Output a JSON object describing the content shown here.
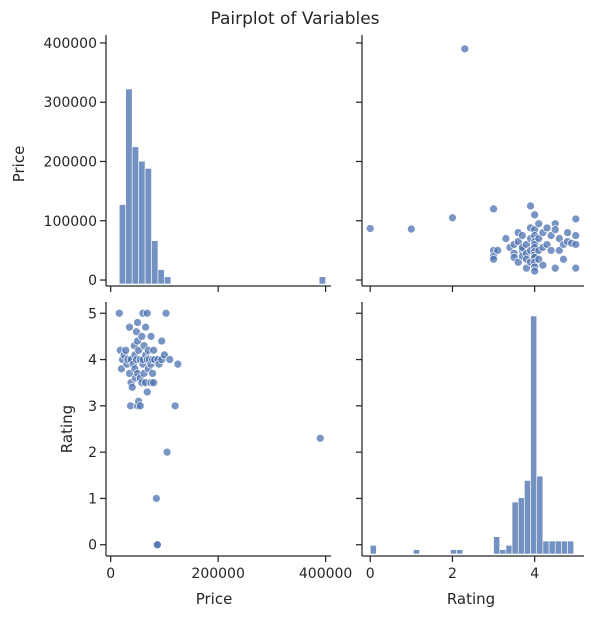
{
  "title": "Pairplot of Variables",
  "variables": [
    "Price",
    "Rating"
  ],
  "colors": {
    "marker": "#4c72b0",
    "axis": "#262626",
    "background": "#ffffff"
  },
  "chart_data": [
    {
      "type": "bar",
      "panel": "Price vs Price (histogram)",
      "xlabel": "",
      "ylabel": "Price",
      "xlim": [
        -5000,
        410000
      ],
      "bin_edges": [
        16000,
        28000,
        40000,
        52000,
        64000,
        76000,
        88000,
        100000,
        112000,
        124000,
        136000,
        148000,
        160000,
        172000,
        184000,
        196000,
        208000,
        220000,
        232000,
        244000,
        256000,
        268000,
        280000,
        292000,
        304000,
        316000,
        328000,
        340000,
        352000,
        364000,
        376000,
        388000,
        400000
      ],
      "counts": [
        11,
        27,
        19,
        17,
        16,
        6,
        2,
        1,
        0,
        0,
        0,
        0,
        0,
        0,
        0,
        0,
        0,
        0,
        0,
        0,
        0,
        0,
        0,
        0,
        0,
        0,
        0,
        0,
        0,
        0,
        0,
        1
      ],
      "yticks": [
        0,
        100000,
        200000,
        300000,
        400000
      ],
      "ytick_labels": [
        "0",
        "100000",
        "200000",
        "300000",
        "400000"
      ]
    },
    {
      "type": "scatter",
      "panel": "Rating vs Price",
      "xlabel": "",
      "ylabel": "",
      "xlim": [
        -0.2,
        5.2
      ],
      "ylim": [
        -5000,
        410000
      ],
      "points": [
        [
          0.0,
          87000
        ],
        [
          1.0,
          86000
        ],
        [
          2.0,
          105000
        ],
        [
          2.3,
          390000
        ],
        [
          3.0,
          120000
        ],
        [
          3.0,
          50000
        ],
        [
          3.0,
          40000
        ],
        [
          3.0,
          35000
        ],
        [
          3.1,
          50000
        ],
        [
          3.3,
          70000
        ],
        [
          3.4,
          55000
        ],
        [
          3.5,
          45000
        ],
        [
          3.5,
          60000
        ],
        [
          3.5,
          38000
        ],
        [
          3.6,
          80000
        ],
        [
          3.6,
          65000
        ],
        [
          3.6,
          30000
        ],
        [
          3.7,
          50000
        ],
        [
          3.7,
          40000
        ],
        [
          3.7,
          75000
        ],
        [
          3.7,
          55000
        ],
        [
          3.8,
          60000
        ],
        [
          3.8,
          45000
        ],
        [
          3.8,
          35000
        ],
        [
          3.8,
          20000
        ],
        [
          3.9,
          88000
        ],
        [
          3.9,
          70000
        ],
        [
          3.9,
          50000
        ],
        [
          3.9,
          125000
        ],
        [
          3.9,
          30000
        ],
        [
          4.0,
          110000
        ],
        [
          4.0,
          85000
        ],
        [
          4.0,
          75000
        ],
        [
          4.0,
          65000
        ],
        [
          4.0,
          60000
        ],
        [
          4.0,
          55000
        ],
        [
          4.0,
          48000
        ],
        [
          4.0,
          42000
        ],
        [
          4.0,
          38000
        ],
        [
          4.0,
          30000
        ],
        [
          4.0,
          22000
        ],
        [
          4.0,
          15000
        ],
        [
          4.1,
          95000
        ],
        [
          4.1,
          70000
        ],
        [
          4.1,
          50000
        ],
        [
          4.1,
          35000
        ],
        [
          4.2,
          55000
        ],
        [
          4.2,
          80000
        ],
        [
          4.2,
          25000
        ],
        [
          4.3,
          60000
        ],
        [
          4.3,
          88000
        ],
        [
          4.4,
          75000
        ],
        [
          4.4,
          50000
        ],
        [
          4.5,
          95000
        ],
        [
          4.5,
          85000
        ],
        [
          4.5,
          20000
        ],
        [
          4.6,
          70000
        ],
        [
          4.6,
          50000
        ],
        [
          4.7,
          60000
        ],
        [
          4.7,
          35000
        ],
        [
          4.8,
          65000
        ],
        [
          4.8,
          80000
        ],
        [
          4.9,
          62000
        ],
        [
          5.0,
          103000
        ],
        [
          5.0,
          75000
        ],
        [
          5.0,
          60000
        ],
        [
          5.0,
          20000
        ]
      ],
      "yticks": [
        0,
        100000,
        200000,
        300000,
        400000
      ]
    },
    {
      "type": "scatter",
      "panel": "Price vs Rating",
      "xlabel": "Price",
      "ylabel": "Rating",
      "xlim": [
        -5000,
        410000
      ],
      "ylim": [
        -0.2,
        5.2
      ],
      "points": [
        [
          16000,
          5.0
        ],
        [
          18000,
          4.2
        ],
        [
          20000,
          3.8
        ],
        [
          22000,
          4.0
        ],
        [
          25000,
          4.1
        ],
        [
          28000,
          4.2
        ],
        [
          30000,
          3.9
        ],
        [
          32000,
          4.0
        ],
        [
          35000,
          3.7
        ],
        [
          35000,
          4.7
        ],
        [
          37000,
          3.0
        ],
        [
          38000,
          3.5
        ],
        [
          38000,
          4.0
        ],
        [
          40000,
          3.4
        ],
        [
          42000,
          3.9
        ],
        [
          44000,
          4.3
        ],
        [
          45000,
          3.8
        ],
        [
          45000,
          4.1
        ],
        [
          46000,
          3.6
        ],
        [
          48000,
          4.0
        ],
        [
          48000,
          4.6
        ],
        [
          50000,
          3.0
        ],
        [
          50000,
          3.7
        ],
        [
          50000,
          4.4
        ],
        [
          50000,
          4.8
        ],
        [
          52000,
          3.1
        ],
        [
          52000,
          4.2
        ],
        [
          55000,
          3.6
        ],
        [
          55000,
          4.0
        ],
        [
          55000,
          3.0
        ],
        [
          58000,
          3.5
        ],
        [
          58000,
          4.5
        ],
        [
          60000,
          3.9
        ],
        [
          60000,
          4.0
        ],
        [
          60000,
          5.0
        ],
        [
          62000,
          3.7
        ],
        [
          62000,
          4.3
        ],
        [
          65000,
          3.5
        ],
        [
          65000,
          4.1
        ],
        [
          65000,
          4.7
        ],
        [
          68000,
          3.3
        ],
        [
          68000,
          4.0
        ],
        [
          68000,
          5.0
        ],
        [
          70000,
          3.8
        ],
        [
          70000,
          4.2
        ],
        [
          72000,
          4.0
        ],
        [
          75000,
          3.5
        ],
        [
          75000,
          3.9
        ],
        [
          75000,
          4.5
        ],
        [
          78000,
          3.7
        ],
        [
          78000,
          4.0
        ],
        [
          80000,
          4.2
        ],
        [
          80000,
          3.5
        ],
        [
          82000,
          4.0
        ],
        [
          85000,
          1.0
        ],
        [
          86000,
          0.0
        ],
        [
          87000,
          0.0
        ],
        [
          88000,
          4.0
        ],
        [
          90000,
          3.9
        ],
        [
          95000,
          4.4
        ],
        [
          95000,
          4.0
        ],
        [
          100000,
          4.1
        ],
        [
          103000,
          5.0
        ],
        [
          105000,
          2.0
        ],
        [
          110000,
          4.0
        ],
        [
          120000,
          3.0
        ],
        [
          125000,
          3.9
        ],
        [
          390000,
          2.3
        ]
      ],
      "xticks": [
        0,
        200000,
        400000
      ],
      "xtick_labels": [
        "0",
        "200000",
        "400000"
      ],
      "yticks": [
        0,
        1,
        2,
        3,
        4,
        5
      ],
      "ytick_labels": [
        "0",
        "1",
        "2",
        "3",
        "4",
        "5"
      ]
    },
    {
      "type": "bar",
      "panel": "Rating vs Rating (histogram)",
      "xlabel": "Rating",
      "ylabel": "",
      "xlim": [
        -0.2,
        5.2
      ],
      "bin_edges": [
        0.0,
        0.15,
        0.3,
        0.45,
        0.6,
        0.75,
        0.9,
        1.05,
        1.2,
        1.35,
        1.5,
        1.65,
        1.8,
        1.95,
        2.1,
        2.25,
        2.4,
        2.55,
        2.7,
        2.85,
        3.0,
        3.15,
        3.3,
        3.45,
        3.6,
        3.75,
        3.9,
        4.05,
        4.2,
        4.35,
        4.5,
        4.65,
        4.8,
        4.95
      ],
      "counts": [
        1,
        0,
        0,
        0,
        0,
        0,
        0,
        0.5,
        0,
        0,
        0,
        0,
        0,
        0.5,
        0.5,
        0,
        0,
        0,
        0,
        0,
        2,
        0.5,
        1,
        6,
        6.5,
        8.5,
        27.5,
        9,
        1.5,
        1.5,
        1.5,
        1.5,
        1.5
      ],
      "xticks": [
        0,
        2,
        4
      ],
      "xtick_labels": [
        "0",
        "2",
        "4"
      ]
    }
  ]
}
